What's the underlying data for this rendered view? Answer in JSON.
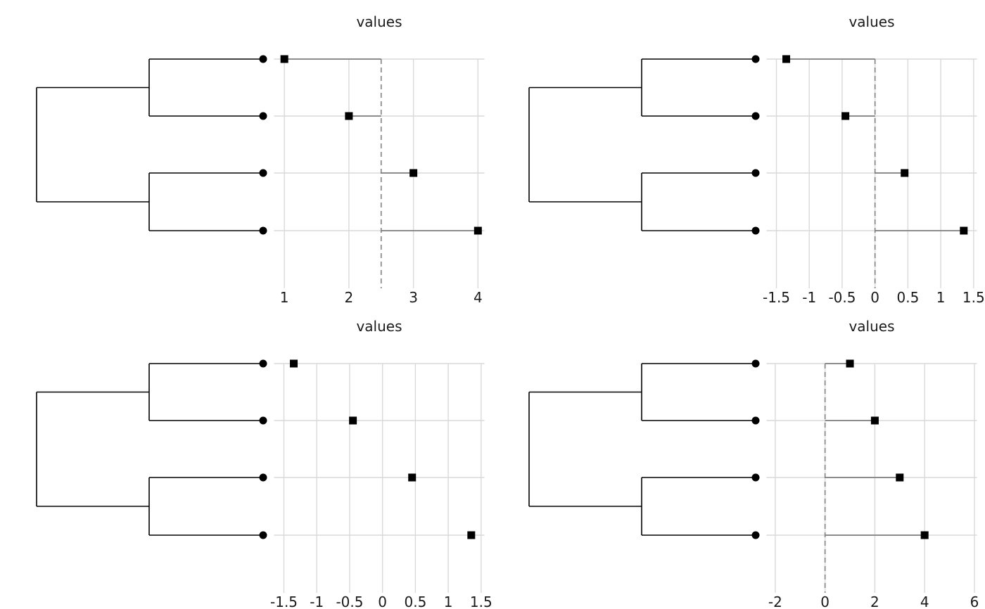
{
  "chart_data": [
    {
      "type": "scatter",
      "title": "values",
      "values": [
        1,
        2,
        3,
        4
      ],
      "xlim": [
        0.84,
        4.1
      ],
      "xticks": [
        "1",
        "2",
        "3",
        "4"
      ],
      "reference_line": 2.5,
      "segments": true,
      "grid": true
    },
    {
      "type": "scatter",
      "title": "values",
      "values": [
        -1.35,
        -0.45,
        0.45,
        1.35
      ],
      "xlim": [
        -1.65,
        1.55
      ],
      "xticks": [
        "-1.5",
        "-1",
        "-0.5",
        "0",
        "0.5",
        "1",
        "1.5"
      ],
      "reference_line": 0,
      "segments": true,
      "grid": true
    },
    {
      "type": "scatter",
      "title": "values",
      "values": [
        -1.35,
        -0.45,
        0.45,
        1.35
      ],
      "xlim": [
        -1.65,
        1.55
      ],
      "xticks": [
        "-1.5",
        "-1",
        "-0.5",
        "0",
        "0.5",
        "1",
        "1.5"
      ],
      "reference_line": null,
      "segments": false,
      "grid": true
    },
    {
      "type": "scatter",
      "title": "values",
      "values": [
        1,
        2,
        3,
        4
      ],
      "xlim": [
        -2.35,
        6.1
      ],
      "xticks": [
        "-2",
        "0",
        "2",
        "4",
        "6"
      ],
      "reference_line": 0,
      "segments": true,
      "grid": true
    }
  ]
}
